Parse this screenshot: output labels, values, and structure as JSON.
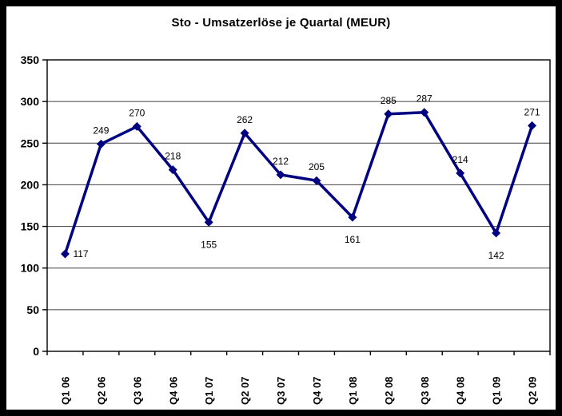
{
  "window": {
    "background": "#ffffff",
    "border_color": "#000000"
  },
  "chart_data": {
    "type": "line",
    "title": "Sto - Umsatzerlöse je Quartal (MEUR)",
    "categories": [
      "Q1 06",
      "Q2 06",
      "Q3 06",
      "Q4 06",
      "Q1 07",
      "Q2 07",
      "Q3 07",
      "Q4 07",
      "Q1 08",
      "Q2 08",
      "Q3 08",
      "Q4 08",
      "Q1 09",
      "Q2 09"
    ],
    "series": [
      {
        "name": "Umsatzerlöse",
        "values": [
          117,
          249,
          270,
          218,
          155,
          262,
          212,
          205,
          161,
          285,
          287,
          214,
          142,
          271
        ]
      }
    ],
    "data_labels_visible": true,
    "data_label_positions": [
      "right",
      "above",
      "above",
      "above",
      "below",
      "above",
      "above",
      "above",
      "below",
      "above",
      "above",
      "above",
      "below",
      "above"
    ],
    "xlabel": "",
    "ylabel": "",
    "ylim": [
      0,
      350
    ],
    "yticks": [
      0,
      50,
      100,
      150,
      200,
      250,
      300,
      350
    ],
    "grid": "horizontal",
    "legend": "none",
    "line_color": "#000080",
    "marker": "diamond",
    "marker_color": "#000080",
    "gridline_color": "#404040",
    "axis_color": "#000000",
    "plot_background": "#ffffff"
  }
}
